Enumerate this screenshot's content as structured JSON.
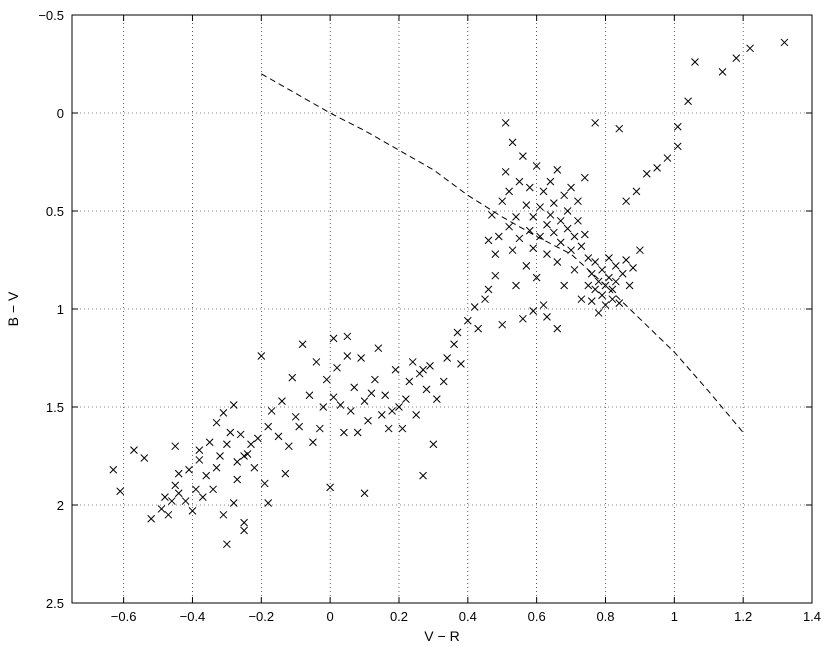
{
  "chart_data": {
    "type": "scatter",
    "xlabel": "V − R",
    "ylabel": "B − V",
    "xlim": [
      -0.75,
      1.4
    ],
    "ylim": [
      -0.5,
      2.5
    ],
    "y_inverted": true,
    "x_ticks": [
      -0.6,
      -0.4,
      -0.2,
      0,
      0.2,
      0.4,
      0.6,
      0.8,
      1,
      1.2,
      1.4
    ],
    "x_tick_labels": [
      "−0.6",
      "−0.4",
      "−0.2",
      "0",
      "0.2",
      "0.4",
      "0.6",
      "0.8",
      "1",
      "1.2",
      "1.4"
    ],
    "y_ticks": [
      -0.5,
      0,
      0.5,
      1,
      1.5,
      2,
      2.5
    ],
    "y_tick_labels": [
      "−0.5",
      "0",
      "0.5",
      "1",
      "1.5",
      "2",
      "2.5"
    ],
    "grid": true,
    "marker": "x",
    "series": [
      {
        "style": "markers",
        "points": [
          [
            -0.63,
            1.82
          ],
          [
            -0.61,
            1.93
          ],
          [
            -0.57,
            1.72
          ],
          [
            -0.54,
            1.76
          ],
          [
            -0.52,
            2.07
          ],
          [
            -0.49,
            2.02
          ],
          [
            -0.48,
            1.96
          ],
          [
            -0.47,
            2.05
          ],
          [
            -0.46,
            1.98
          ],
          [
            -0.45,
            1.9
          ],
          [
            -0.45,
            1.7
          ],
          [
            -0.44,
            1.94
          ],
          [
            -0.44,
            1.84
          ],
          [
            -0.42,
            1.98
          ],
          [
            -0.41,
            1.82
          ],
          [
            -0.4,
            2.03
          ],
          [
            -0.39,
            1.92
          ],
          [
            -0.38,
            1.77
          ],
          [
            -0.38,
            1.72
          ],
          [
            -0.37,
            1.96
          ],
          [
            -0.36,
            1.85
          ],
          [
            -0.35,
            1.68
          ],
          [
            -0.34,
            1.92
          ],
          [
            -0.33,
            1.81
          ],
          [
            -0.33,
            1.58
          ],
          [
            -0.32,
            1.75
          ],
          [
            -0.31,
            1.53
          ],
          [
            -0.31,
            2.05
          ],
          [
            -0.3,
            1.69
          ],
          [
            -0.3,
            2.2
          ],
          [
            -0.29,
            1.63
          ],
          [
            -0.28,
            1.49
          ],
          [
            -0.28,
            1.99
          ],
          [
            -0.27,
            1.78
          ],
          [
            -0.27,
            1.87
          ],
          [
            -0.26,
            1.64
          ],
          [
            -0.25,
            1.75
          ],
          [
            -0.25,
            2.09
          ],
          [
            -0.25,
            2.13
          ],
          [
            -0.24,
            1.74
          ],
          [
            -0.23,
            1.69
          ],
          [
            -0.22,
            1.81
          ],
          [
            -0.21,
            1.66
          ],
          [
            -0.2,
            1.24
          ],
          [
            -0.19,
            1.89
          ],
          [
            -0.18,
            1.6
          ],
          [
            -0.18,
            1.99
          ],
          [
            -0.17,
            1.52
          ],
          [
            -0.15,
            1.65
          ],
          [
            -0.14,
            1.47
          ],
          [
            -0.13,
            1.84
          ],
          [
            -0.12,
            1.7
          ],
          [
            -0.11,
            1.35
          ],
          [
            -0.1,
            1.55
          ],
          [
            -0.09,
            1.6
          ],
          [
            -0.08,
            1.18
          ],
          [
            -0.06,
            1.44
          ],
          [
            -0.05,
            1.68
          ],
          [
            -0.04,
            1.27
          ],
          [
            -0.03,
            1.61
          ],
          [
            -0.02,
            1.5
          ],
          [
            -0.01,
            1.36
          ],
          [
            0.0,
            1.91
          ],
          [
            0.01,
            1.45
          ],
          [
            0.01,
            1.15
          ],
          [
            0.02,
            1.3
          ],
          [
            0.03,
            1.49
          ],
          [
            0.04,
            1.63
          ],
          [
            0.05,
            1.24
          ],
          [
            0.05,
            1.14
          ],
          [
            0.06,
            1.52
          ],
          [
            0.07,
            1.4
          ],
          [
            0.08,
            1.63
          ],
          [
            0.09,
            1.25
          ],
          [
            0.1,
            1.47
          ],
          [
            0.1,
            1.94
          ],
          [
            0.11,
            1.57
          ],
          [
            0.12,
            1.43
          ],
          [
            0.13,
            1.36
          ],
          [
            0.14,
            1.2
          ],
          [
            0.15,
            1.54
          ],
          [
            0.16,
            1.44
          ],
          [
            0.17,
            1.61
          ],
          [
            0.18,
            1.52
          ],
          [
            0.19,
            1.31
          ],
          [
            0.2,
            1.5
          ],
          [
            0.21,
            1.61
          ],
          [
            0.22,
            1.46
          ],
          [
            0.23,
            1.37
          ],
          [
            0.24,
            1.27
          ],
          [
            0.25,
            1.54
          ],
          [
            0.26,
            1.33
          ],
          [
            0.27,
            1.31
          ],
          [
            0.27,
            1.85
          ],
          [
            0.28,
            1.41
          ],
          [
            0.29,
            1.29
          ],
          [
            0.3,
            1.69
          ],
          [
            0.31,
            1.46
          ],
          [
            0.33,
            1.37
          ],
          [
            0.34,
            1.25
          ],
          [
            0.36,
            1.18
          ],
          [
            0.37,
            1.12
          ],
          [
            0.38,
            1.28
          ],
          [
            0.4,
            1.06
          ],
          [
            0.42,
            0.99
          ],
          [
            0.43,
            1.1
          ],
          [
            0.45,
            0.95
          ],
          [
            0.46,
            0.9
          ],
          [
            0.46,
            0.65
          ],
          [
            0.47,
            0.52
          ],
          [
            0.48,
            0.83
          ],
          [
            0.48,
            0.72
          ],
          [
            0.49,
            0.63
          ],
          [
            0.5,
            1.08
          ],
          [
            0.5,
            0.45
          ],
          [
            0.51,
            0.3
          ],
          [
            0.51,
            0.05
          ],
          [
            0.52,
            0.58
          ],
          [
            0.52,
            0.4
          ],
          [
            0.53,
            0.7
          ],
          [
            0.53,
            0.15
          ],
          [
            0.54,
            0.88
          ],
          [
            0.54,
            0.53
          ],
          [
            0.55,
            0.35
          ],
          [
            0.55,
            0.64
          ],
          [
            0.56,
            1.05
          ],
          [
            0.56,
            0.22
          ],
          [
            0.57,
            0.47
          ],
          [
            0.57,
            0.78
          ],
          [
            0.58,
            0.6
          ],
          [
            0.58,
            0.38
          ],
          [
            0.59,
            0.69
          ],
          [
            0.59,
            0.53
          ],
          [
            0.6,
            0.27
          ],
          [
            0.6,
            0.84
          ],
          [
            0.61,
            0.48
          ],
          [
            0.61,
            0.63
          ],
          [
            0.62,
            0.98
          ],
          [
            0.62,
            0.4
          ],
          [
            0.63,
            0.57
          ],
          [
            0.63,
            0.72
          ],
          [
            0.64,
            0.35
          ],
          [
            0.64,
            0.52
          ],
          [
            0.65,
            0.61
          ],
          [
            0.65,
            0.46
          ],
          [
            0.66,
            0.76
          ],
          [
            0.66,
            0.29
          ],
          [
            0.67,
            0.55
          ],
          [
            0.67,
            0.66
          ],
          [
            0.68,
            0.42
          ],
          [
            0.68,
            0.88
          ],
          [
            0.69,
            0.59
          ],
          [
            0.69,
            0.5
          ],
          [
            0.7,
            0.7
          ],
          [
            0.7,
            0.38
          ],
          [
            0.71,
            0.63
          ],
          [
            0.71,
            0.8
          ],
          [
            0.72,
            0.55
          ],
          [
            0.72,
            0.45
          ],
          [
            0.73,
            0.68
          ],
          [
            0.73,
            0.95
          ],
          [
            0.74,
            0.62
          ],
          [
            0.74,
            0.33
          ],
          [
            0.75,
            0.74
          ],
          [
            0.75,
            0.88
          ],
          [
            0.76,
            0.82
          ],
          [
            0.76,
            0.96
          ],
          [
            0.77,
            0.9
          ],
          [
            0.77,
            0.76
          ],
          [
            0.78,
            1.02
          ],
          [
            0.78,
            0.86
          ],
          [
            0.79,
            0.93
          ],
          [
            0.79,
            0.8
          ],
          [
            0.8,
            0.88
          ],
          [
            0.8,
            0.98
          ],
          [
            0.81,
            0.84
          ],
          [
            0.81,
            0.74
          ],
          [
            0.82,
            0.95
          ],
          [
            0.82,
            0.9
          ],
          [
            0.83,
            0.78
          ],
          [
            0.83,
            0.86
          ],
          [
            0.84,
            0.97
          ],
          [
            0.85,
            0.82
          ],
          [
            0.86,
            0.75
          ],
          [
            0.87,
            0.88
          ],
          [
            0.88,
            0.79
          ],
          [
            0.9,
            0.7
          ],
          [
            0.86,
            0.45
          ],
          [
            0.89,
            0.4
          ],
          [
            0.92,
            0.31
          ],
          [
            0.95,
            0.28
          ],
          [
            0.98,
            0.23
          ],
          [
            1.01,
            0.17
          ],
          [
            1.01,
            0.07
          ],
          [
            1.04,
            -0.06
          ],
          [
            1.06,
            -0.26
          ],
          [
            1.14,
            -0.21
          ],
          [
            1.18,
            -0.28
          ],
          [
            1.22,
            -0.33
          ],
          [
            1.32,
            -0.36
          ],
          [
            0.77,
            0.05
          ],
          [
            0.84,
            0.08
          ],
          [
            0.66,
            1.1
          ],
          [
            0.63,
            1.04
          ],
          [
            0.59,
            1.01
          ]
        ]
      },
      {
        "style": "dashed-line",
        "points": [
          [
            -0.2,
            -0.2
          ],
          [
            -0.1,
            -0.1
          ],
          [
            0.0,
            0.0
          ],
          [
            0.1,
            0.09
          ],
          [
            0.2,
            0.19
          ],
          [
            0.3,
            0.29
          ],
          [
            0.4,
            0.42
          ],
          [
            0.5,
            0.53
          ],
          [
            0.6,
            0.63
          ],
          [
            0.7,
            0.72
          ],
          [
            0.8,
            0.88
          ],
          [
            0.9,
            1.05
          ],
          [
            1.0,
            1.22
          ],
          [
            1.1,
            1.42
          ],
          [
            1.2,
            1.63
          ]
        ]
      }
    ]
  }
}
